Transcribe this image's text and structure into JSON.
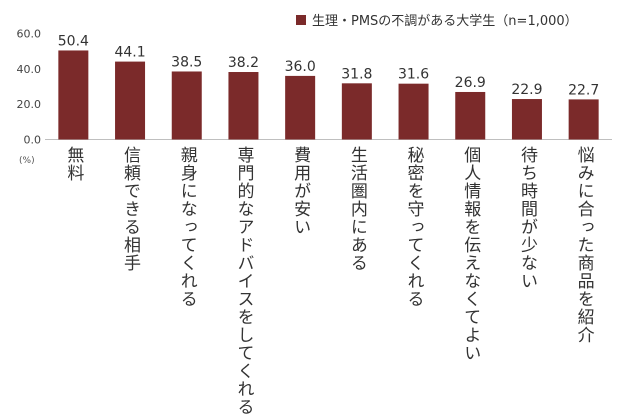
{
  "chart_data": {
    "type": "bar",
    "legend": "生理・PMSの不調がある大学生（n=1,000）",
    "legend_position": "top-right",
    "unit": "(%)",
    "categories": [
      "無料",
      "信頼できる相手",
      "親身になってくれる",
      "専門的なアドバイスをしてくれる",
      "費用が安い",
      "生活圏内にある",
      "秘密を守ってくれる",
      "個人情報を伝えなくてよい",
      "待ち時間が少ない",
      "悩みに合った商品を紹介"
    ],
    "values": [
      50.4,
      44.1,
      38.5,
      38.2,
      36.0,
      31.8,
      31.6,
      26.9,
      22.9,
      22.7
    ],
    "value_labels": [
      "50.4",
      "44.1",
      "38.5",
      "38.2",
      "36.0",
      "31.8",
      "31.6",
      "26.9",
      "22.9",
      "22.7"
    ],
    "yticks": [
      0,
      20,
      40,
      60
    ],
    "ytick_labels": [
      "0.0",
      "20.0",
      "40.0",
      "60.0"
    ],
    "ylim": [
      0,
      60
    ],
    "grid": false,
    "bar_color": "#7b2a2a"
  }
}
